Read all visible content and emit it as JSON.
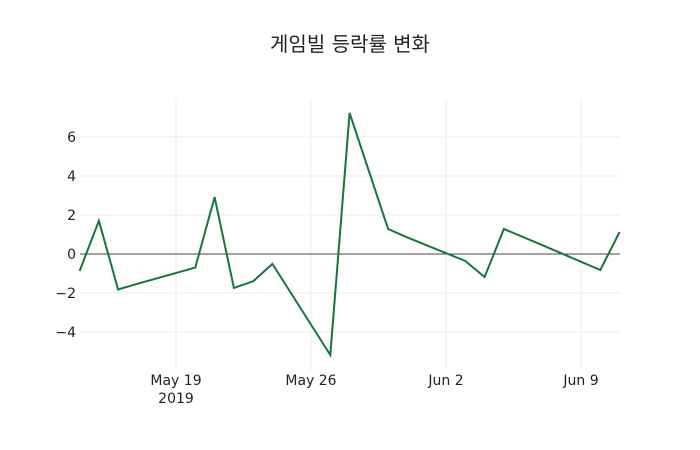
{
  "chart_data": {
    "type": "line",
    "title": "게임빌 등락률 변화",
    "xlabel": "",
    "ylabel": "",
    "x": [
      "2019-05-14",
      "2019-05-15",
      "2019-05-16",
      "2019-05-17",
      "2019-05-20",
      "2019-05-21",
      "2019-05-22",
      "2019-05-23",
      "2019-05-24",
      "2019-05-27",
      "2019-05-28",
      "2019-05-29",
      "2019-05-30",
      "2019-05-31",
      "2019-06-03",
      "2019-06-04",
      "2019-06-05",
      "2019-06-07",
      "2019-06-10",
      "2019-06-11"
    ],
    "series": [
      {
        "name": "등락률",
        "color": "#11773d",
        "values": [
          -0.87,
          1.7,
          -1.82,
          -1.53,
          -0.7,
          2.92,
          -1.74,
          -1.4,
          -0.51,
          -5.18,
          7.23,
          4.25,
          1.28,
          0.85,
          -0.36,
          -1.18,
          1.28,
          0.45,
          -0.82,
          1.13
        ]
      }
    ],
    "ylim": [
      -5.8,
      7.8
    ],
    "yticks": [
      -4,
      -2,
      0,
      2,
      4,
      6
    ],
    "ytick_labels": [
      "−4",
      "−2",
      "0",
      "2",
      "4",
      "6"
    ],
    "xticks": [
      "2019-05-19",
      "2019-05-26",
      "2019-06-02",
      "2019-06-09"
    ],
    "xtick_labels": [
      "May 19\n2019",
      "May 26",
      "Jun 2",
      "Jun 9"
    ],
    "grid": true,
    "zero_line": true,
    "legend": false
  },
  "title": "게임빌 등락률 변화",
  "xaxis": {
    "ticks": [
      {
        "label": "May 19",
        "sub": "2019"
      },
      {
        "label": "May 26",
        "sub": ""
      },
      {
        "label": "Jun 2",
        "sub": ""
      },
      {
        "label": "Jun 9",
        "sub": ""
      }
    ]
  },
  "yaxis": {
    "ticks": [
      "6",
      "4",
      "2",
      "0",
      "−2",
      "−4"
    ]
  }
}
